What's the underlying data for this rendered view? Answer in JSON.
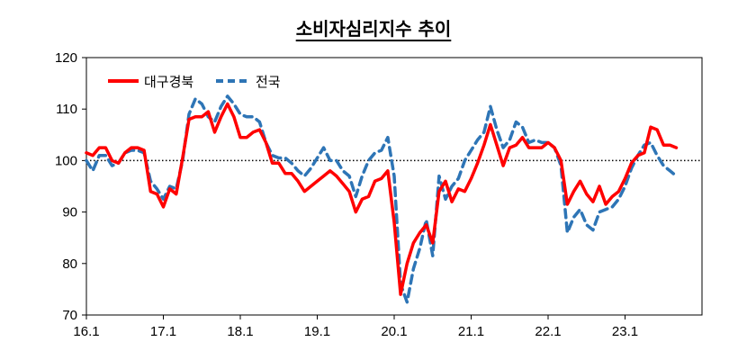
{
  "chart_data": {
    "type": "line",
    "title": "소비자심리지수 추이",
    "xlabel": "",
    "ylabel": "",
    "ylim": [
      70,
      120
    ],
    "yticks": [
      "120",
      "110",
      "100",
      "90",
      "80",
      "70"
    ],
    "xticks": [
      "16.1",
      "17.1",
      "18.1",
      "19.1",
      "20.1",
      "21.1",
      "22.1",
      "23.1"
    ],
    "reference_line": 100,
    "legend_position": "top-left",
    "x_start": "2016-01",
    "series": [
      {
        "name": "대구경북",
        "color": "#ff0000",
        "style": "solid",
        "values": [
          101.5,
          101,
          102.5,
          102.5,
          100,
          99.5,
          101.5,
          102.5,
          102.5,
          102,
          94,
          93.5,
          91,
          94.5,
          93.5,
          100.5,
          108,
          108.5,
          108.5,
          109.5,
          105.5,
          108.5,
          111,
          108.5,
          104.5,
          104.5,
          105.5,
          106,
          103.5,
          99.5,
          99.5,
          97.5,
          97.5,
          96,
          94,
          95,
          96,
          97,
          98,
          97,
          95.5,
          94,
          90,
          92.5,
          93,
          96,
          96.5,
          98,
          88,
          74,
          80,
          84,
          86,
          87.5,
          84,
          94,
          96,
          92,
          94.5,
          94,
          96.5,
          99.5,
          103,
          107,
          103,
          99,
          102.5,
          103,
          104.5,
          102.5,
          102.5,
          102.5,
          103.5,
          102.5,
          100,
          91.5,
          94,
          96,
          93.5,
          92,
          95,
          91.5,
          93,
          94,
          96.5,
          99.5,
          101,
          101.5,
          106.5,
          106,
          103,
          103,
          102.5
        ]
      },
      {
        "name": "전국",
        "color": "#2e75b6",
        "style": "dashed",
        "values": [
          100,
          98,
          101,
          101,
          99,
          99.5,
          101.5,
          102,
          102,
          101.5,
          96,
          94.5,
          92.5,
          95,
          94.5,
          100,
          109,
          112,
          111,
          108.5,
          107.5,
          110.5,
          112.5,
          111,
          109,
          108.5,
          108.5,
          107.5,
          103.5,
          101,
          100.5,
          100.5,
          99.5,
          98,
          97,
          98.5,
          100.5,
          102.5,
          100,
          100,
          98,
          97,
          93,
          97,
          100,
          101.5,
          102,
          104.5,
          97,
          76,
          72.5,
          79,
          83,
          88.5,
          81.5,
          97,
          92.5,
          95,
          96.5,
          100,
          102,
          104,
          105.5,
          110.5,
          106,
          102.5,
          104,
          107.5,
          106.5,
          103.5,
          104,
          103.5,
          103.5,
          102.5,
          99,
          86,
          89,
          90.5,
          87.5,
          86.5,
          90,
          90.5,
          91,
          92.5,
          95,
          98.5,
          101,
          103,
          103.5,
          101,
          99,
          98,
          97
        ]
      }
    ]
  }
}
